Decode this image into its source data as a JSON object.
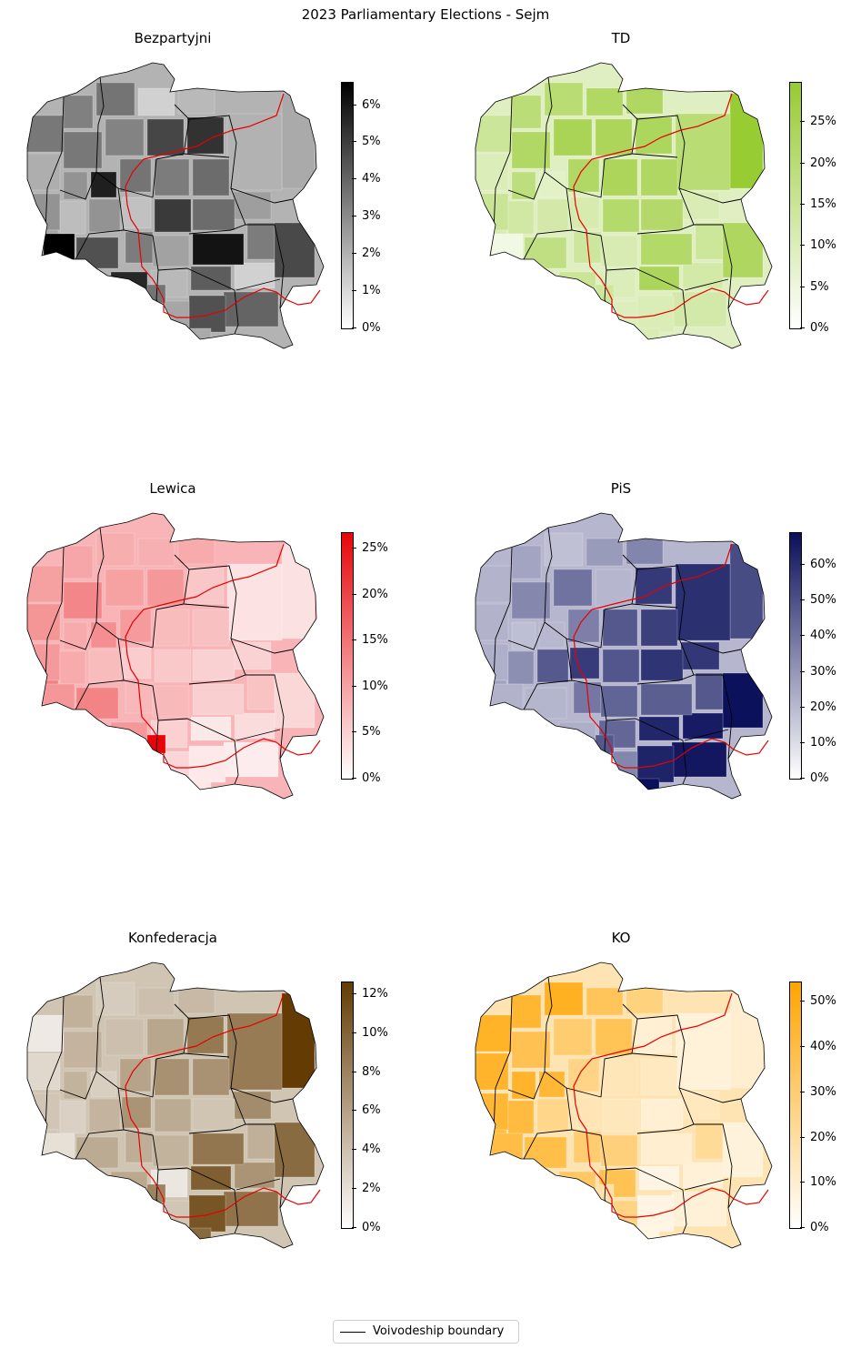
{
  "title": "2023 Parliamentary Elections - Sejm",
  "legend": {
    "label": "Voivodeship boundary"
  },
  "panels": [
    {
      "title": "Bezpartyjni",
      "color_low": "#ffffff",
      "color_high": "#000000",
      "ticks": [
        "0%",
        "1%",
        "2%",
        "3%",
        "4%",
        "5%",
        "6%"
      ],
      "max": 6.6,
      "values": [
        3.5,
        3.3,
        3.6,
        1.2,
        1.8,
        2.2,
        2.1,
        3.5,
        3.2,
        4.8,
        5.3,
        2.0,
        2.8,
        2.8,
        5.8,
        3.6,
        3.4,
        3.8,
        2.5,
        3.4,
        4.7,
        2.3,
        1.7,
        6.6,
        2.8,
        4.5,
        1.6,
        5.1,
        3.8,
        1.2,
        3.4,
        5.6,
        2.4,
        1.8,
        6.1,
        4.2,
        4.0,
        4.5,
        2.3,
        2.2,
        3.6
      ]
    },
    {
      "title": "TD",
      "color_low": "#ffffff",
      "color_high": "#97cb31",
      "ticks": [
        "0%",
        "5%",
        "10%",
        "15%",
        "20%",
        "25%"
      ],
      "max": 29.8,
      "values": [
        14.8,
        19.5,
        20.2,
        22.5,
        22.9,
        29.5,
        10.2,
        22.3,
        24.5,
        23.8,
        23.6,
        20.1,
        15.2,
        18.8,
        8.1,
        22.4,
        23.9,
        22.8,
        10.8,
        14.6,
        23.0,
        11.3,
        13.1,
        4.1,
        12.4,
        18.1,
        11.6,
        21.2,
        21.5,
        12.7,
        14.2,
        15.0,
        11.2,
        10.3,
        21.9,
        23.7,
        12.5,
        10.6,
        9.7,
        10.9,
        14.0
      ]
    },
    {
      "title": "Lewica",
      "color_low": "#ffffff",
      "color_high": "#e6060a",
      "ticks": [
        "0%",
        "5%",
        "10%",
        "15%",
        "20%",
        "25%"
      ],
      "max": 26.7,
      "values": [
        10.2,
        9.5,
        8.7,
        8.5,
        9.0,
        3.2,
        11.4,
        13.0,
        10.1,
        11.0,
        6.0,
        3.1,
        10.8,
        9.0,
        12.1,
        10.7,
        7.2,
        6.8,
        4.8,
        6.4,
        4.2,
        13.4,
        9.0,
        11.2,
        7.2,
        13.2,
        5.5,
        5.9,
        4.9,
        3.8,
        7.6,
        11.0,
        7.5,
        5.0,
        5.1,
        2.5,
        2.0,
        2.4,
        4.4,
        2.6,
        26.7
      ]
    },
    {
      "title": "PiS",
      "color_low": "#ffffff",
      "color_high": "#0a0f5b",
      "ticks": [
        "0%",
        "10%",
        "20%",
        "30%",
        "40%",
        "50%",
        "60%"
      ],
      "max": 69.0,
      "values": [
        21.5,
        26.1,
        18.0,
        28.7,
        35.1,
        51.4,
        21.8,
        34.4,
        40.2,
        20.6,
        57.0,
        59.6,
        22.9,
        18.5,
        20.3,
        36.7,
        47.9,
        55.2,
        57.4,
        48.1,
        68.5,
        26.7,
        32.2,
        21.8,
        47.6,
        21.0,
        56.3,
        48.5,
        58.5,
        65.5,
        39.0,
        23.0,
        44.4,
        44.0,
        46.4,
        62.2,
        66.8,
        63.1,
        34.6,
        69.0,
        48.2
      ]
    },
    {
      "title": "Konfederacja",
      "color_low": "#ffffff",
      "color_high": "#633b03",
      "ticks": [
        "0%",
        "2%",
        "4%",
        "6%",
        "8%",
        "10%",
        "12%"
      ],
      "max": 12.6,
      "values": [
        1.4,
        5.0,
        3.3,
        4.1,
        4.5,
        12.6,
        2.5,
        4.8,
        4.1,
        5.7,
        8.6,
        8.5,
        3.7,
        4.9,
        3.1,
        5.9,
        7.1,
        7.0,
        7.4,
        5.1,
        9.5,
        3.6,
        3.0,
        2.0,
        4.8,
        5.4,
        6.9,
        5.4,
        3.8,
        6.9,
        5.2,
        5.6,
        4.9,
        1.6,
        8.8,
        10.3,
        9.0,
        10.9,
        3.7,
        9.6,
        7.9
      ]
    },
    {
      "title": "KO",
      "color_low": "#ffffff",
      "color_high": "#ffa500",
      "ticks": [
        "0%",
        "10%",
        "20%",
        "30%",
        "40%",
        "50%"
      ],
      "max": 54.3,
      "values": [
        46.1,
        43.6,
        47.3,
        35.2,
        27.4,
        10.1,
        45.1,
        36.9,
        30.6,
        35.9,
        9.3,
        8.0,
        42.9,
        45.1,
        43.1,
        25.8,
        15.0,
        13.1,
        13.9,
        21.9,
        7.9,
        39.8,
        40.9,
        39.6,
        25.0,
        38.8,
        15.7,
        14.3,
        9.3,
        8.6,
        30.5,
        33.1,
        28.1,
        36.4,
        10.0,
        5.8,
        8.4,
        6.2,
        26.4,
        6.0,
        17.8
      ]
    }
  ]
}
